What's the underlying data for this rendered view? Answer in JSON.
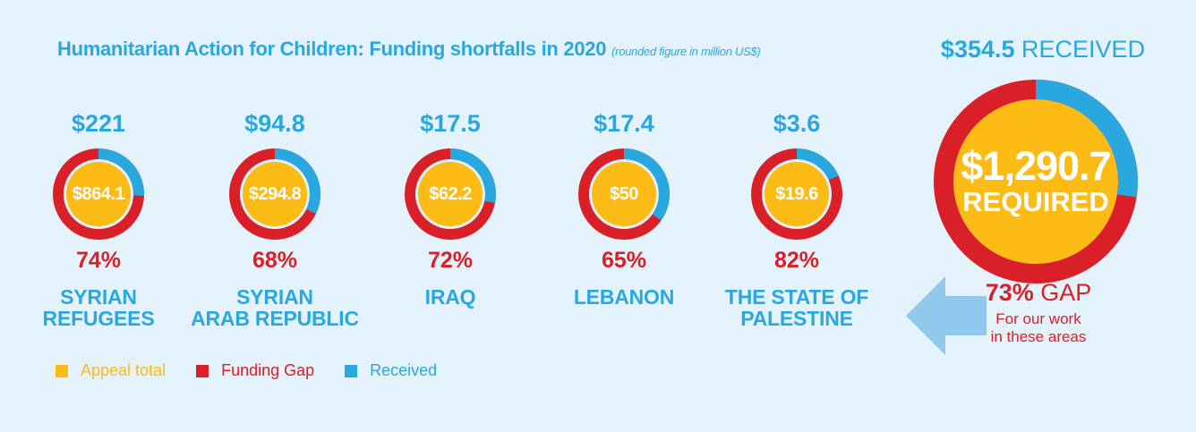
{
  "title": "Humanitarian Action for Children: Funding shortfalls in 2020",
  "subtitle": "(rounded figure in million US$)",
  "colors": {
    "appeal": "#fcbb15",
    "gap": "#d92029",
    "received": "#29a8e0"
  },
  "legend": [
    {
      "label": "Appeal total",
      "color": "#fcbb15"
    },
    {
      "label": "Funding Gap",
      "color": "#d92029"
    },
    {
      "label": "Received",
      "color": "#29a8e0"
    }
  ],
  "countries": [
    {
      "name_line1": "SYRIAN",
      "name_line2": "REFUGEES",
      "received": "$221",
      "required": "$864.1",
      "gap_pct": "74%"
    },
    {
      "name_line1": "SYRIAN",
      "name_line2": "ARAB REPUBLIC",
      "received": "$94.8",
      "required": "$294.8",
      "gap_pct": "68%"
    },
    {
      "name_line1": "IRAQ",
      "name_line2": "",
      "received": "$17.5",
      "required": "$62.2",
      "gap_pct": "72%"
    },
    {
      "name_line1": "LEBANON",
      "name_line2": "",
      "received": "$17.4",
      "required": "$50",
      "gap_pct": "65%"
    },
    {
      "name_line1": "THE STATE OF",
      "name_line2": "PALESTINE",
      "received": "$3.6",
      "required": "$19.6",
      "gap_pct": "82%"
    }
  ],
  "total": {
    "received_amount": "$354.5",
    "received_word": "RECEIVED",
    "required_amount": "$1,290.7",
    "required_word": "REQUIRED",
    "gap_pct": "73%",
    "gap_word": "GAP",
    "note_line1": "For our work",
    "note_line2": "in these areas"
  },
  "chart_data": {
    "type": "pie",
    "title": "Humanitarian Action for Children: Funding shortfalls in 2020",
    "subtitle": "(rounded figure in million US$)",
    "legend": [
      "Appeal total",
      "Funding Gap",
      "Received"
    ],
    "categories": [
      "SYRIAN REFUGEES",
      "SYRIAN ARAB REPUBLIC",
      "IRAQ",
      "LEBANON",
      "THE STATE OF PALESTINE",
      "TOTAL"
    ],
    "series": [
      {
        "name": "Appeal total",
        "values": [
          864.1,
          294.8,
          62.2,
          50,
          19.6,
          1290.7
        ]
      },
      {
        "name": "Received",
        "values": [
          221,
          94.8,
          17.5,
          17.4,
          3.6,
          354.5
        ]
      },
      {
        "name": "Funding Gap",
        "values": [
          74,
          68,
          72,
          65,
          82,
          73
        ]
      }
    ]
  }
}
